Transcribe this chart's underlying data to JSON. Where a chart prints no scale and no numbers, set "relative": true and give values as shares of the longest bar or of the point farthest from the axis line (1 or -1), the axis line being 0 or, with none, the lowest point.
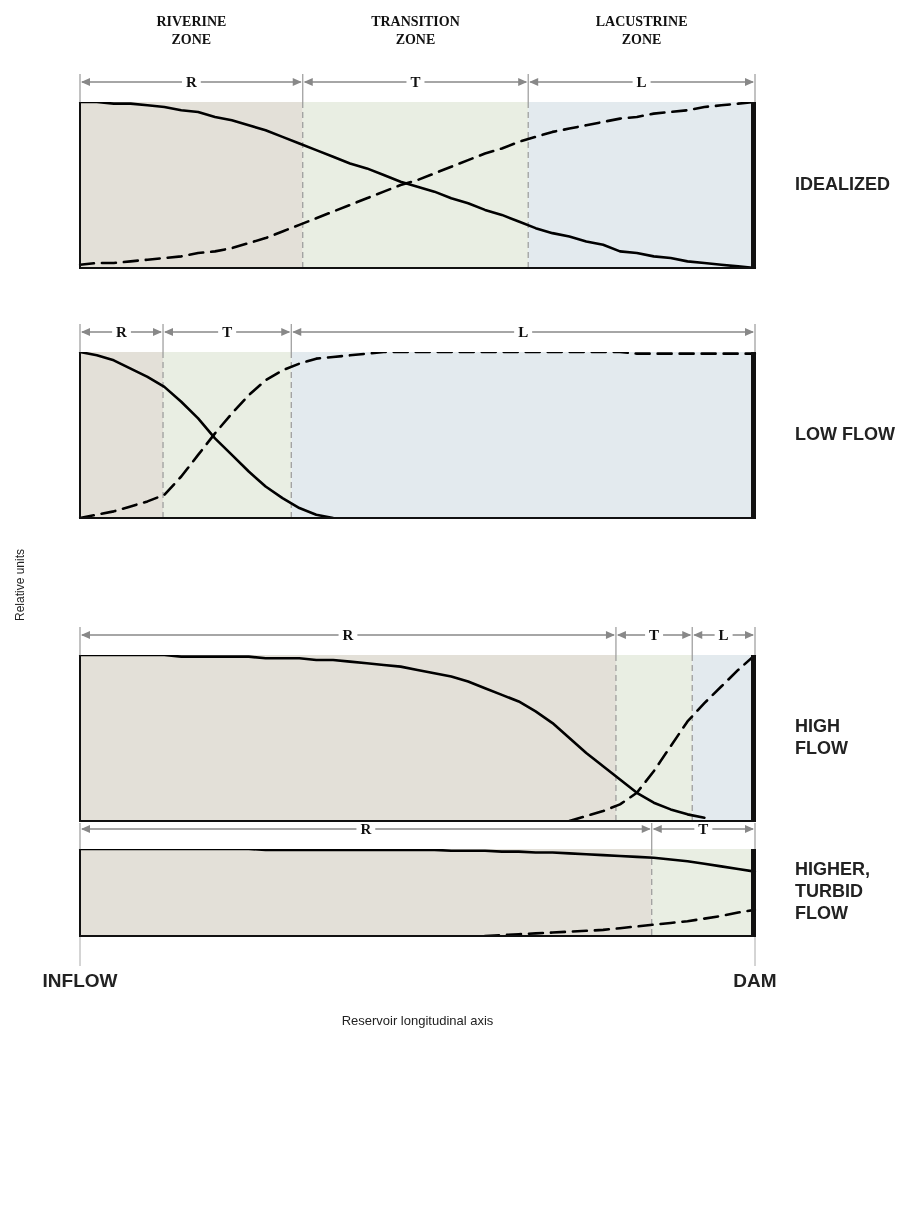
{
  "chart_data": [
    {
      "type": "line",
      "relative": true,
      "marker": "none",
      "legend": false,
      "grid": "x",
      "categories": [
        null,
        null,
        null,
        null,
        null,
        null,
        null,
        null,
        null,
        null,
        null,
        null,
        null,
        null,
        null,
        null,
        null,
        null,
        null,
        null,
        null,
        null,
        null,
        null,
        null,
        null,
        null,
        null,
        null,
        null,
        null,
        null,
        null,
        null,
        null,
        null,
        null,
        null,
        null,
        null,
        null
      ],
      "annotations": [
        "RIVERINE ZONE",
        "TRANSITION ZONE",
        "LACUSTRINE ZONE",
        "R",
        "T",
        "L",
        "IDEALIZED"
      ],
      "series": [
        {
          "color": "#000000",
          "line_style": "solid",
          "values": [
            1,
            1,
            0.99,
            0.99,
            0.98,
            0.97,
            0.95,
            0.94,
            0.91,
            0.89,
            0.86,
            0.83,
            0.79,
            0.75,
            0.71,
            0.67,
            0.63,
            0.6,
            0.56,
            0.52,
            0.49,
            0.46,
            0.42,
            0.39,
            0.35,
            0.32,
            0.28,
            0.24,
            0.21,
            0.19,
            0.16,
            0.14,
            0.1,
            0.09,
            0.07,
            0.06,
            0.04,
            0.03,
            0.02,
            0.01,
            0
          ]
        },
        {
          "color": "#000000",
          "line_style": "dashed",
          "values": [
            0.02,
            0.03,
            0.03,
            0.04,
            0.05,
            0.06,
            0.07,
            0.09,
            0.1,
            0.12,
            0.15,
            0.18,
            0.22,
            0.26,
            0.3,
            0.34,
            0.38,
            0.42,
            0.46,
            0.5,
            0.53,
            0.57,
            0.61,
            0.65,
            0.69,
            0.72,
            0.76,
            0.79,
            0.82,
            0.84,
            0.86,
            0.88,
            0.9,
            0.91,
            0.93,
            0.94,
            0.95,
            0.97,
            0.98,
            0.99,
            1
          ]
        }
      ]
    },
    {
      "type": "line",
      "relative": true,
      "marker": "none",
      "legend": false,
      "grid": "x",
      "categories": [
        null,
        null,
        null,
        null,
        null,
        null,
        null,
        null,
        null,
        null,
        null,
        null,
        null,
        null,
        null,
        null,
        null,
        null,
        null,
        null,
        null,
        null,
        null,
        null,
        null,
        null,
        null,
        null,
        null,
        null,
        null,
        null,
        null,
        null,
        null,
        null,
        null,
        null,
        null,
        null,
        null
      ],
      "annotations": [
        "R",
        "T",
        "L",
        "LOW FLOW"
      ],
      "series": [
        {
          "color": "#000000",
          "line_style": "solid",
          "values": [
            1,
            0.98,
            0.95,
            0.9,
            0.85,
            0.79,
            0.7,
            0.6,
            0.48,
            0.38,
            0.28,
            0.19,
            0.12,
            0.06,
            0.02,
            0,
            null,
            null,
            null,
            null,
            null,
            null,
            null,
            null,
            null,
            null,
            null,
            null,
            null,
            null,
            null,
            null,
            null,
            null,
            null,
            null,
            null,
            null,
            null,
            null,
            null
          ]
        },
        {
          "color": "#000000",
          "line_style": "dashed",
          "values": [
            0,
            0.02,
            0.04,
            0.07,
            0.1,
            0.14,
            0.25,
            0.38,
            0.51,
            0.63,
            0.74,
            0.83,
            0.89,
            0.93,
            0.96,
            0.97,
            0.98,
            0.99,
            1,
            1,
            1,
            1,
            1,
            1,
            1,
            1,
            1,
            1,
            1,
            1,
            1,
            1,
            1,
            0.99,
            0.99,
            0.99,
            0.99,
            0.99,
            0.99,
            0.99,
            0.99
          ]
        }
      ]
    },
    {
      "type": "line",
      "ylabel": "Relative units",
      "relative": true,
      "marker": "none",
      "legend": false,
      "grid": "x",
      "categories": [
        null,
        null,
        null,
        null,
        null,
        null,
        null,
        null,
        null,
        null,
        null,
        null,
        null,
        null,
        null,
        null,
        null,
        null,
        null,
        null,
        null,
        null,
        null,
        null,
        null,
        null,
        null,
        null,
        null,
        null,
        null,
        null,
        null,
        null,
        null,
        null,
        null,
        null,
        null,
        null,
        null
      ],
      "annotations": [
        "R",
        "T",
        "L",
        "HIGH FLOW"
      ],
      "series": [
        {
          "color": "#000000",
          "line_style": "solid",
          "values": [
            1,
            1,
            1,
            1,
            1,
            1,
            0.99,
            0.99,
            0.99,
            0.99,
            0.99,
            0.98,
            0.98,
            0.98,
            0.97,
            0.97,
            0.96,
            0.95,
            0.94,
            0.93,
            0.91,
            0.89,
            0.87,
            0.84,
            0.8,
            0.76,
            0.72,
            0.66,
            0.59,
            0.5,
            0.41,
            0.33,
            0.25,
            0.17,
            0.11,
            0.07,
            0.04,
            0.02,
            null,
            null,
            null
          ]
        },
        {
          "color": "#000000",
          "line_style": "dashed",
          "values": [
            null,
            null,
            null,
            null,
            null,
            null,
            null,
            null,
            null,
            null,
            null,
            null,
            null,
            null,
            null,
            null,
            null,
            null,
            null,
            null,
            null,
            null,
            null,
            null,
            null,
            null,
            null,
            null,
            null,
            0,
            0.03,
            0.06,
            0.1,
            0.17,
            0.3,
            0.45,
            0.6,
            0.71,
            0.81,
            0.91,
            1
          ]
        }
      ]
    },
    {
      "type": "line",
      "xlabel": "Reservoir longitudinal axis",
      "relative": true,
      "marker": "none",
      "legend": false,
      "grid": "x",
      "categories": [
        "INFLOW",
        null,
        null,
        null,
        null,
        null,
        null,
        null,
        null,
        null,
        null,
        null,
        null,
        null,
        null,
        null,
        null,
        null,
        null,
        null,
        null,
        null,
        null,
        null,
        null,
        null,
        null,
        null,
        null,
        null,
        null,
        null,
        null,
        null,
        null,
        null,
        null,
        null,
        null,
        null,
        "DAM"
      ],
      "annotations": [
        "R",
        "T",
        "HIGHER, TURBID FLOW"
      ],
      "series": [
        {
          "color": "#000000",
          "line_style": "solid",
          "values": [
            1,
            1,
            1,
            1,
            1,
            1,
            1,
            1,
            1,
            1,
            1,
            0.99,
            0.99,
            0.99,
            0.99,
            0.99,
            0.99,
            0.99,
            0.99,
            0.99,
            0.99,
            0.99,
            0.98,
            0.98,
            0.98,
            0.97,
            0.97,
            0.96,
            0.96,
            0.95,
            0.94,
            0.93,
            0.92,
            0.91,
            0.9,
            0.88,
            0.86,
            0.83,
            0.8,
            0.77,
            0.74
          ]
        },
        {
          "color": "#000000",
          "line_style": "dashed",
          "values": [
            null,
            null,
            null,
            null,
            null,
            null,
            null,
            null,
            null,
            null,
            null,
            null,
            null,
            null,
            null,
            null,
            null,
            null,
            null,
            null,
            null,
            null,
            null,
            null,
            0,
            0.01,
            0.02,
            0.03,
            0.04,
            0.05,
            0.06,
            0.07,
            0.09,
            0.11,
            0.13,
            0.15,
            0.17,
            0.2,
            0.23,
            0.27,
            0.3
          ]
        }
      ]
    }
  ]
}
